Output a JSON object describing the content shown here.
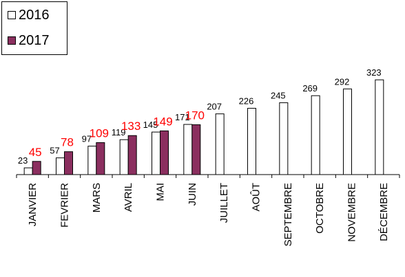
{
  "legend": {
    "entries": [
      {
        "label": "2016",
        "color": "#ffffff"
      },
      {
        "label": "2017",
        "color": "#8b2f5f"
      }
    ]
  },
  "chart_data": {
    "type": "bar",
    "categories": [
      "JANVIER",
      "FEVRIER",
      "MARS",
      "AVRIL",
      "MAI",
      "JUIN",
      "JUILLET",
      "AOÛT",
      "SEPTEMBRE",
      "OCTOBRE",
      "NOVEMBRE",
      "DÉCEMBRE"
    ],
    "series": [
      {
        "name": "2016",
        "values": [
          23,
          57,
          97,
          119,
          145,
          171,
          207,
          226,
          245,
          269,
          292,
          323
        ],
        "color": "#ffffff",
        "label_color": "#000000"
      },
      {
        "name": "2017",
        "values": [
          45,
          78,
          109,
          133,
          149,
          170,
          null,
          null,
          null,
          null,
          null,
          null
        ],
        "color": "#8b2f5f",
        "label_color": "#ff0000"
      }
    ],
    "title": "",
    "xlabel": "",
    "ylabel": "",
    "ylim": [
      0,
      350
    ],
    "grid": false,
    "legend_position": "top-left"
  }
}
